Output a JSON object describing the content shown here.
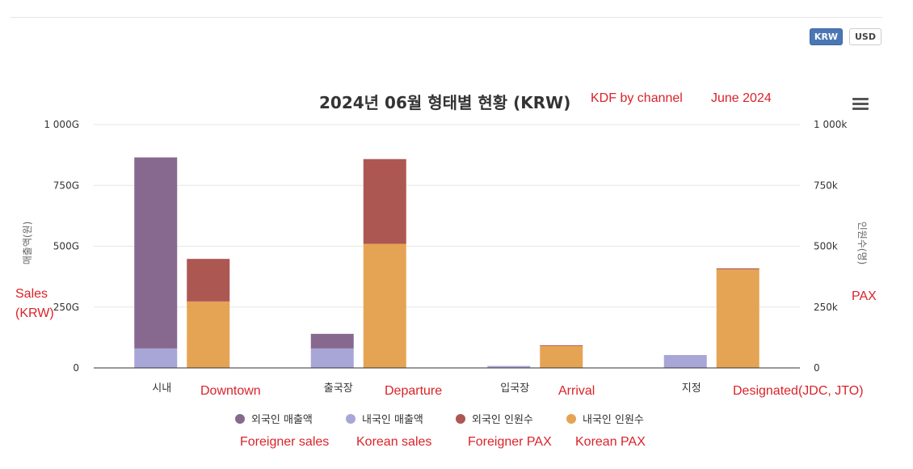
{
  "currency": {
    "options": [
      "KRW",
      "USD"
    ],
    "selected": "KRW"
  },
  "chart_data": {
    "type": "bar",
    "stacked": true,
    "title": "2024년 06월 형태별 현황 (KRW)",
    "categories": [
      "시내",
      "출국장",
      "입국장",
      "지정"
    ],
    "y_left": {
      "label": "매출액(원)",
      "range": [
        0,
        1000
      ],
      "ticks": [
        0,
        250,
        500,
        750,
        1000
      ],
      "tick_labels": [
        "0",
        "250G",
        "500G",
        "750G",
        "1 000G"
      ]
    },
    "y_right": {
      "label": "인원수(명)",
      "range": [
        0,
        1000
      ],
      "ticks": [
        0,
        250,
        500,
        750,
        1000
      ],
      "tick_labels": [
        "0",
        "250k",
        "500k",
        "750k",
        "1 000k"
      ]
    },
    "series": [
      {
        "name": "외국인 매출액",
        "stack": "sales",
        "axis": "left",
        "color": "#87698f",
        "values": [
          785,
          60,
          0,
          0
        ]
      },
      {
        "name": "내국인 매출액",
        "stack": "sales",
        "axis": "left",
        "color": "#a8a6d6",
        "values": [
          80,
          80,
          8,
          53
        ]
      },
      {
        "name": "외국인 인원수",
        "stack": "pax",
        "axis": "right",
        "color": "#ad5753",
        "values": [
          175,
          348,
          3,
          4
        ]
      },
      {
        "name": "내국인 인원수",
        "stack": "pax",
        "axis": "right",
        "color": "#e5a454",
        "values": [
          273,
          510,
          90,
          405
        ]
      }
    ],
    "legend_position": "bottom",
    "grid": true
  },
  "annotations": {
    "title_note_1": "KDF by channel",
    "title_note_2": "June 2024",
    "sales_axis_1": "Sales",
    "sales_axis_2": "(KRW)",
    "pax_axis": "PAX",
    "categories": [
      "Downtown",
      "Departure",
      "Arrival",
      "Designated(JDC, JTO)"
    ],
    "legend": [
      "Foreigner sales",
      "Korean sales",
      "Foreigner PAX",
      "Korean PAX"
    ]
  }
}
